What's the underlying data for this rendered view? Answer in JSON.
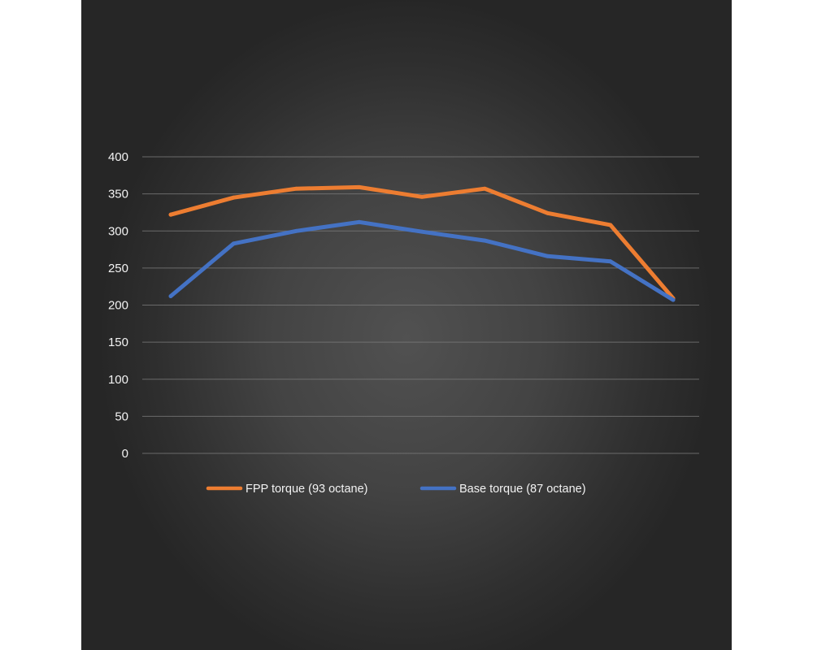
{
  "chart_data": {
    "type": "line",
    "title": "",
    "xlabel": "",
    "ylabel": "",
    "ylim": [
      0,
      400
    ],
    "yticks": [
      0,
      50,
      100,
      150,
      200,
      250,
      300,
      350,
      400
    ],
    "x": [
      1,
      2,
      3,
      4,
      5,
      6,
      7,
      8,
      9
    ],
    "grid": true,
    "legend_position": "bottom",
    "series": [
      {
        "name": "FPP torque (93 octane)",
        "color": "#ed7d31",
        "values": [
          322,
          345,
          357,
          359,
          346,
          357,
          324,
          308,
          209
        ]
      },
      {
        "name": "Base torque (87 octane)",
        "color": "#4472c4",
        "values": [
          212,
          283,
          300,
          312,
          299,
          287,
          266,
          259,
          207
        ]
      }
    ]
  }
}
